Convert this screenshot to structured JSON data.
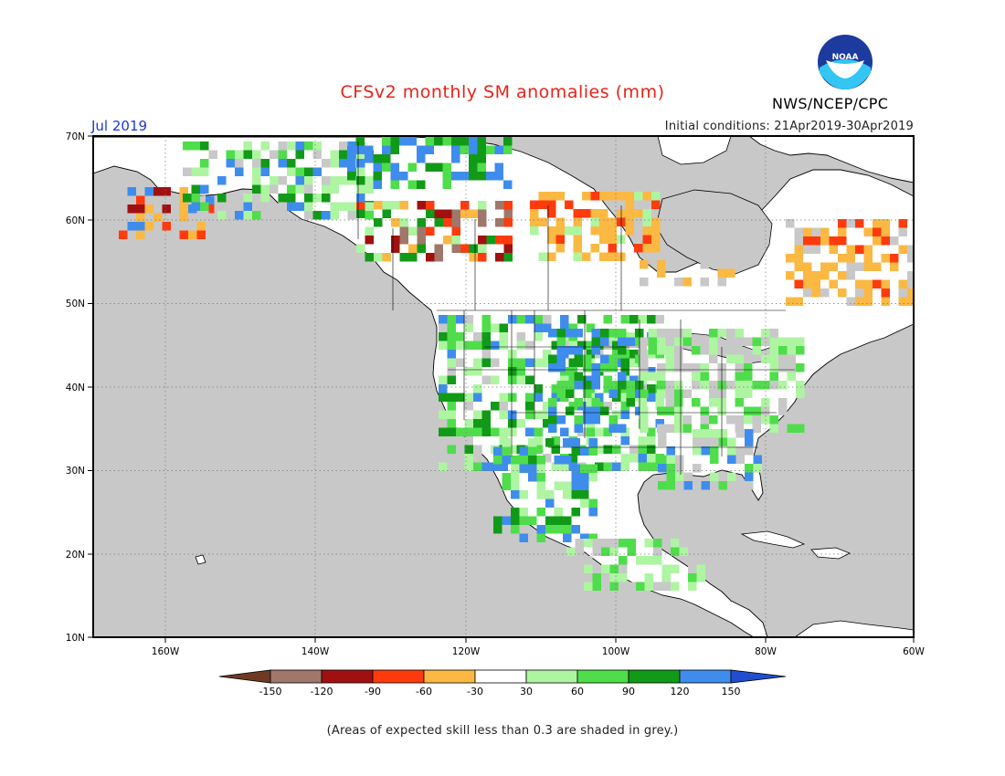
{
  "header": {
    "title": "CFSv2 monthly SM anomalies (mm)",
    "organization": "NWS/NCEP/CPC",
    "logo_text": "NOAA",
    "month": "Jul 2019",
    "initial_conditions": "Initial conditions: 21Apr2019-30Apr2019"
  },
  "map": {
    "lat_labels": [
      "70N",
      "60N",
      "50N",
      "40N",
      "30N",
      "20N",
      "10N"
    ],
    "lon_labels": [
      "160W",
      "140W",
      "120W",
      "100W",
      "80W",
      "60W"
    ],
    "lat_range": [
      10,
      70
    ],
    "lon_range": [
      -171,
      -60
    ],
    "ocean_color": "#c8c8c8",
    "land_color": "#ffffff"
  },
  "colorbar": {
    "tick_labels": [
      "-150",
      "-120",
      "-90",
      "-60",
      "-30",
      "30",
      "60",
      "90",
      "120",
      "150"
    ],
    "colors": [
      "#6e3b22",
      "#a0776b",
      "#a01010",
      "#ff3a0c",
      "#fbb843",
      "#ffffff",
      "#aef5a2",
      "#4fdd4b",
      "#119a17",
      "#3e8ded",
      "#1f4fd0"
    ]
  },
  "footer": {
    "note": "(Areas of expected skill less than 0.3 are shaded in grey.)"
  }
}
